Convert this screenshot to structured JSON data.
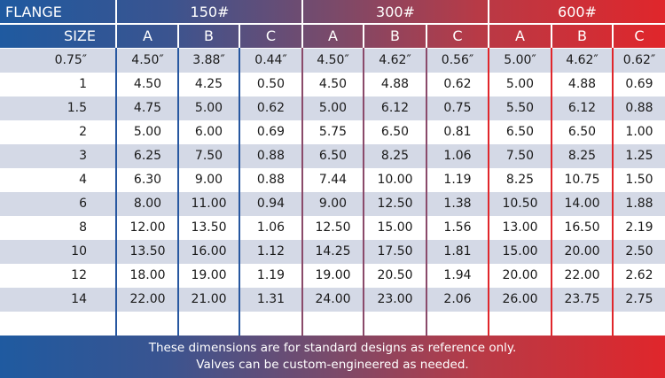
{
  "header": {
    "flange_label": "FLANGE",
    "size_label": "SIZE",
    "groups": [
      "150#",
      "300#",
      "600#"
    ],
    "columns": [
      "A",
      "B",
      "C",
      "A",
      "B",
      "C",
      "A",
      "B",
      "C"
    ]
  },
  "rows": [
    {
      "size": "0.75″",
      "values": [
        "4.50″",
        "3.88″",
        "0.44″",
        "4.50″",
        "4.62″",
        "0.56″",
        "5.00″",
        "4.62″",
        "0.62″"
      ]
    },
    {
      "size": "1",
      "values": [
        "4.50",
        "4.25",
        "0.50",
        "4.50",
        "4.88",
        "0.62",
        "5.00",
        "4.88",
        "0.69"
      ]
    },
    {
      "size": "1.5",
      "values": [
        "4.75",
        "5.00",
        "0.62",
        "5.00",
        "6.12",
        "0.75",
        "5.50",
        "6.12",
        "0.88"
      ]
    },
    {
      "size": "2",
      "values": [
        "5.00",
        "6.00",
        "0.69",
        "5.75",
        "6.50",
        "0.81",
        "6.50",
        "6.50",
        "1.00"
      ]
    },
    {
      "size": "3",
      "values": [
        "6.25",
        "7.50",
        "0.88",
        "6.50",
        "8.25",
        "1.06",
        "7.50",
        "8.25",
        "1.25"
      ]
    },
    {
      "size": "4",
      "values": [
        "6.30",
        "9.00",
        "0.88",
        "7.44",
        "10.00",
        "1.19",
        "8.25",
        "10.75",
        "1.50"
      ]
    },
    {
      "size": "6",
      "values": [
        "8.00",
        "11.00",
        "0.94",
        "9.00",
        "12.50",
        "1.38",
        "10.50",
        "14.00",
        "1.88"
      ]
    },
    {
      "size": "8",
      "values": [
        "12.00",
        "13.50",
        "1.06",
        "12.50",
        "15.00",
        "1.56",
        "13.00",
        "16.50",
        "2.19"
      ]
    },
    {
      "size": "10",
      "values": [
        "13.50",
        "16.00",
        "1.12",
        "14.25",
        "17.50",
        "1.81",
        "15.00",
        "20.00",
        "2.50"
      ]
    },
    {
      "size": "12",
      "values": [
        "18.00",
        "19.00",
        "1.19",
        "19.00",
        "20.50",
        "1.94",
        "20.00",
        "22.00",
        "2.62"
      ]
    },
    {
      "size": "14",
      "values": [
        "22.00",
        "21.00",
        "1.31",
        "24.00",
        "23.00",
        "2.06",
        "26.00",
        "23.75",
        "2.75"
      ]
    }
  ],
  "footer": {
    "line1": "These dimensions are for standard designs as reference only.",
    "line2": "Valves can be custom-engineered as needed."
  },
  "colors": {
    "blue": "#1f5aa0",
    "red": "#e0262b",
    "row_alt": "#d4d9e6"
  }
}
